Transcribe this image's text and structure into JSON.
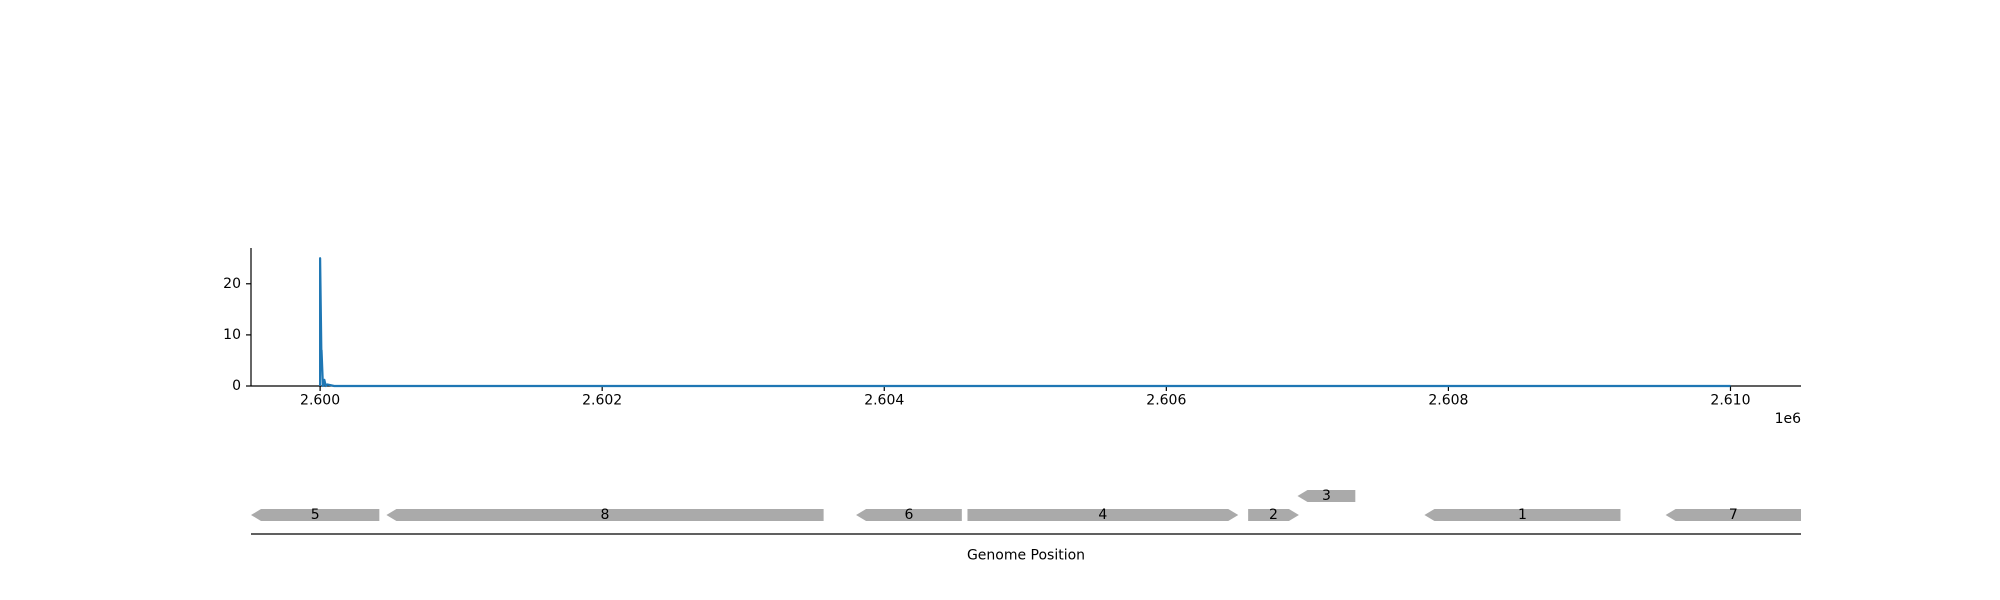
{
  "chart_data": [
    {
      "type": "line",
      "title": "",
      "xlabel": "",
      "ylabel": "",
      "x_offset_label": "1e6",
      "xlim": [
        2.59951,
        2.6105
      ],
      "ylim": [
        0,
        27
      ],
      "x_ticks": [
        2.6,
        2.602,
        2.604,
        2.606,
        2.608,
        2.61
      ],
      "x_tick_labels": [
        "2.600",
        "2.602",
        "2.604",
        "2.606",
        "2.608",
        "2.610"
      ],
      "y_ticks": [
        0,
        10,
        20
      ],
      "y_tick_labels": [
        "0",
        "10",
        "20"
      ],
      "grid": false,
      "series": [
        {
          "color": "#1f77b4",
          "x": [
            2.6,
            2.6,
            2.60001,
            2.60001,
            2.60002,
            2.60003,
            2.60004,
            2.60005,
            2.6001,
            2.61
          ],
          "values": [
            0,
            25,
            4,
            7,
            0,
            1.2,
            0,
            0.3,
            0,
            0
          ]
        }
      ]
    },
    {
      "type": "gene-track",
      "xlabel": "Genome Position",
      "xlim": [
        2.59951,
        2.6105
      ],
      "color": "#aaaaaa",
      "genes": [
        {
          "label": "5",
          "start": 2.59951,
          "end": 2.60042,
          "strand": "-",
          "row": 0
        },
        {
          "label": "8",
          "start": 2.60047,
          "end": 2.60357,
          "strand": "-",
          "row": 0
        },
        {
          "label": "6",
          "start": 2.6038,
          "end": 2.60455,
          "strand": "-",
          "row": 0
        },
        {
          "label": "4",
          "start": 2.60459,
          "end": 2.60651,
          "strand": "+",
          "row": 0
        },
        {
          "label": "2",
          "start": 2.60658,
          "end": 2.60694,
          "strand": "+",
          "row": 0
        },
        {
          "label": "3",
          "start": 2.60693,
          "end": 2.60734,
          "strand": "-",
          "row": 1
        },
        {
          "label": "1",
          "start": 2.60783,
          "end": 2.60922,
          "strand": "-",
          "row": 0
        },
        {
          "label": "7",
          "start": 2.60954,
          "end": 2.6105,
          "strand": "-",
          "row": 0
        }
      ]
    }
  ]
}
